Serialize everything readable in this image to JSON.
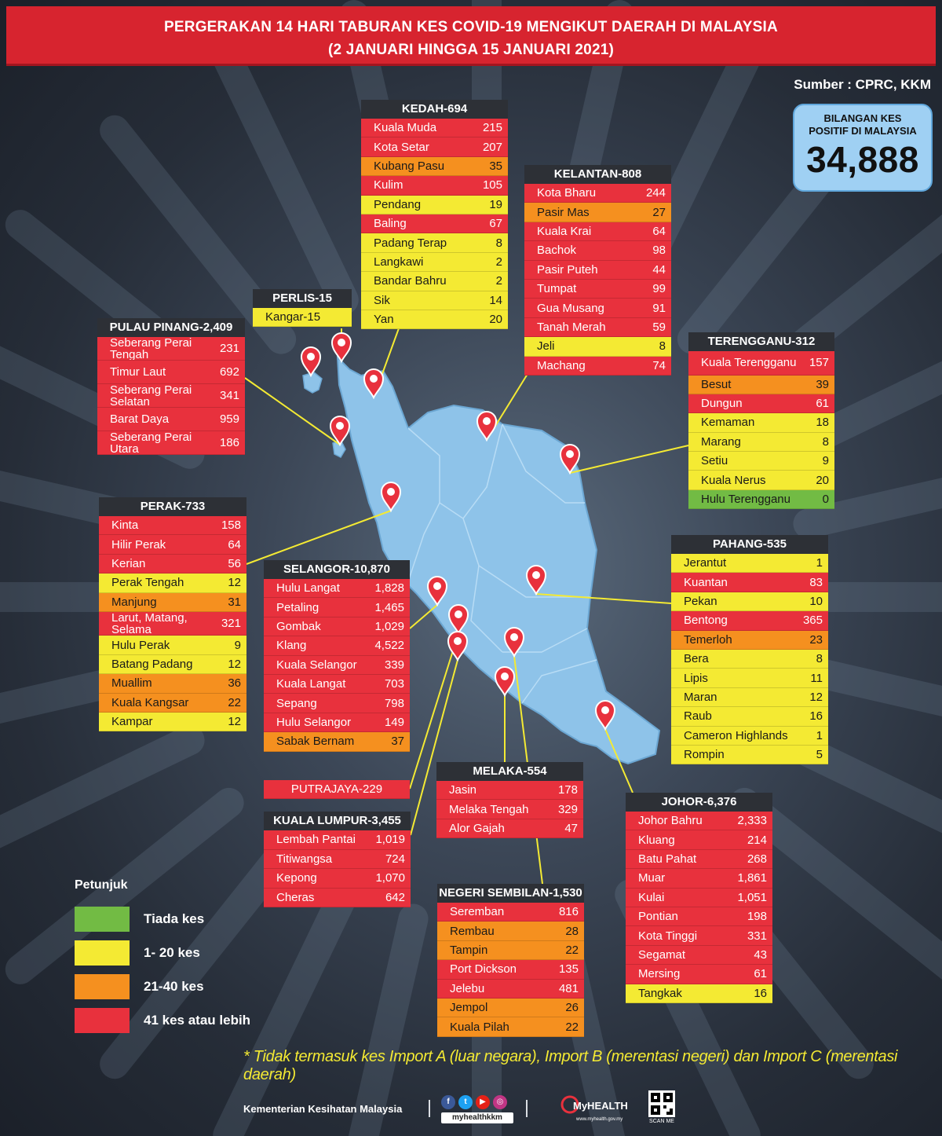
{
  "title": {
    "line1": "PERGERAKAN 14 HARI TABURAN KES COVID-19 MENGIKUT DAERAH DI MALAYSIA",
    "line2": "(2 JANUARI HINGGA 15 JANUARI 2021)"
  },
  "source": "Sumber : CPRC, KKM",
  "total": {
    "label_line1": "BILANGAN KES",
    "label_line2": "POSITIF DI MALAYSIA",
    "value": "34,888"
  },
  "colors": {
    "none": "#72bb44",
    "low": "#f4ea33",
    "mid": "#f5901f",
    "high": "#e8313d",
    "title": "#d7242f",
    "map": "#8ec3e9"
  },
  "states": [
    {
      "id": "kedah",
      "header": "KEDAH-694",
      "rows": [
        {
          "name": "Kuala Muda",
          "value": "215",
          "level": "red"
        },
        {
          "name": "Kota Setar",
          "value": "207",
          "level": "red"
        },
        {
          "name": "Kubang Pasu",
          "value": "35",
          "level": "orange"
        },
        {
          "name": "Kulim",
          "value": "105",
          "level": "red"
        },
        {
          "name": "Pendang",
          "value": "19",
          "level": "yellow"
        },
        {
          "name": "Baling",
          "value": "67",
          "level": "red"
        },
        {
          "name": "Padang Terap",
          "value": "8",
          "level": "yellow"
        },
        {
          "name": "Langkawi",
          "value": "2",
          "level": "yellow"
        },
        {
          "name": "Bandar Bahru",
          "value": "2",
          "level": "yellow"
        },
        {
          "name": "Sik",
          "value": "14",
          "level": "yellow"
        },
        {
          "name": "Yan",
          "value": "20",
          "level": "yellow"
        }
      ]
    },
    {
      "id": "kelantan",
      "header": "KELANTAN-808",
      "rows": [
        {
          "name": "Kota Bharu",
          "value": "244",
          "level": "red"
        },
        {
          "name": "Pasir Mas",
          "value": "27",
          "level": "orange"
        },
        {
          "name": "Kuala Krai",
          "value": "64",
          "level": "red"
        },
        {
          "name": "Bachok",
          "value": "98",
          "level": "red"
        },
        {
          "name": "Pasir Puteh",
          "value": "44",
          "level": "red"
        },
        {
          "name": "Tumpat",
          "value": "99",
          "level": "red"
        },
        {
          "name": "Gua Musang",
          "value": "91",
          "level": "red"
        },
        {
          "name": "Tanah Merah",
          "value": "59",
          "level": "red"
        },
        {
          "name": "Jeli",
          "value": "8",
          "level": "yellow"
        },
        {
          "name": "Machang",
          "value": "74",
          "level": "red"
        }
      ]
    },
    {
      "id": "perlis",
      "header": "PERLIS-15",
      "rows": [
        {
          "name": "Kangar-15",
          "value": "",
          "level": "yellow"
        }
      ]
    },
    {
      "id": "pulau-pinang",
      "header": "PULAU PINANG-2,409",
      "rows": [
        {
          "name": "Seberang Perai Tengah",
          "value": "231",
          "level": "red"
        },
        {
          "name": "Timur Laut",
          "value": "692",
          "level": "red"
        },
        {
          "name": "Seberang Perai Selatan",
          "value": "341",
          "level": "red"
        },
        {
          "name": "Barat Daya",
          "value": "959",
          "level": "red"
        },
        {
          "name": "Seberang Perai Utara",
          "value": "186",
          "level": "red"
        }
      ]
    },
    {
      "id": "terengganu",
      "header": "TERENGGANU-312",
      "rows": [
        {
          "name": "Kuala Terengganu",
          "value": "157",
          "level": "red"
        },
        {
          "name": "Besut",
          "value": "39",
          "level": "orange"
        },
        {
          "name": "Dungun",
          "value": "61",
          "level": "red"
        },
        {
          "name": "Kemaman",
          "value": "18",
          "level": "yellow"
        },
        {
          "name": "Marang",
          "value": "8",
          "level": "yellow"
        },
        {
          "name": "Setiu",
          "value": "9",
          "level": "yellow"
        },
        {
          "name": "Kuala Nerus",
          "value": "20",
          "level": "yellow"
        },
        {
          "name": "Hulu Terengganu",
          "value": "0",
          "level": "green"
        }
      ]
    },
    {
      "id": "perak",
      "header": "PERAK-733",
      "rows": [
        {
          "name": "Kinta",
          "value": "158",
          "level": "red"
        },
        {
          "name": "Hilir Perak",
          "value": "64",
          "level": "red"
        },
        {
          "name": "Kerian",
          "value": "56",
          "level": "red"
        },
        {
          "name": "Perak Tengah",
          "value": "12",
          "level": "yellow"
        },
        {
          "name": "Manjung",
          "value": "31",
          "level": "orange"
        },
        {
          "name": "Larut, Matang, Selama",
          "value": "321",
          "level": "red"
        },
        {
          "name": "Hulu Perak",
          "value": "9",
          "level": "yellow"
        },
        {
          "name": "Batang Padang",
          "value": "12",
          "level": "yellow"
        },
        {
          "name": "Muallim",
          "value": "36",
          "level": "orange"
        },
        {
          "name": "Kuala Kangsar",
          "value": "22",
          "level": "orange"
        },
        {
          "name": "Kampar",
          "value": "12",
          "level": "yellow"
        }
      ]
    },
    {
      "id": "selangor",
      "header": "SELANGOR-10,870",
      "rows": [
        {
          "name": "Hulu Langat",
          "value": "1,828",
          "level": "red"
        },
        {
          "name": "Petaling",
          "value": "1,465",
          "level": "red"
        },
        {
          "name": "Gombak",
          "value": "1,029",
          "level": "red"
        },
        {
          "name": "Klang",
          "value": "4,522",
          "level": "red"
        },
        {
          "name": "Kuala Selangor",
          "value": "339",
          "level": "red"
        },
        {
          "name": "Kuala Langat",
          "value": "703",
          "level": "red"
        },
        {
          "name": "Sepang",
          "value": "798",
          "level": "red"
        },
        {
          "name": "Hulu Selangor",
          "value": "149",
          "level": "red"
        },
        {
          "name": "Sabak Bernam",
          "value": "37",
          "level": "orange"
        }
      ]
    },
    {
      "id": "pahang",
      "header": "PAHANG-535",
      "rows": [
        {
          "name": "Jerantut",
          "value": "1",
          "level": "yellow"
        },
        {
          "name": "Kuantan",
          "value": "83",
          "level": "red"
        },
        {
          "name": "Pekan",
          "value": "10",
          "level": "yellow"
        },
        {
          "name": "Bentong",
          "value": "365",
          "level": "red"
        },
        {
          "name": "Temerloh",
          "value": "23",
          "level": "orange"
        },
        {
          "name": "Bera",
          "value": "8",
          "level": "yellow"
        },
        {
          "name": "Lipis",
          "value": "11",
          "level": "yellow"
        },
        {
          "name": "Maran",
          "value": "12",
          "level": "yellow"
        },
        {
          "name": "Raub",
          "value": "16",
          "level": "yellow"
        },
        {
          "name": "Cameron Highlands",
          "value": "1",
          "level": "yellow"
        },
        {
          "name": "Rompin",
          "value": "5",
          "level": "yellow"
        }
      ]
    },
    {
      "id": "putrajaya",
      "header": "",
      "rows": [
        {
          "name": "PUTRAJAYA-229",
          "value": "",
          "level": "red"
        }
      ]
    },
    {
      "id": "melaka",
      "header": "MELAKA-554",
      "rows": [
        {
          "name": "Jasin",
          "value": "178",
          "level": "red"
        },
        {
          "name": "Melaka Tengah",
          "value": "329",
          "level": "red"
        },
        {
          "name": "Alor Gajah",
          "value": "47",
          "level": "red"
        }
      ]
    },
    {
      "id": "johor",
      "header": "JOHOR-6,376",
      "rows": [
        {
          "name": "Johor Bahru",
          "value": "2,333",
          "level": "red"
        },
        {
          "name": "Kluang",
          "value": "214",
          "level": "red"
        },
        {
          "name": "Batu Pahat",
          "value": "268",
          "level": "red"
        },
        {
          "name": "Muar",
          "value": "1,861",
          "level": "red"
        },
        {
          "name": "Kulai",
          "value": "1,051",
          "level": "red"
        },
        {
          "name": "Pontian",
          "value": "198",
          "level": "red"
        },
        {
          "name": "Kota Tinggi",
          "value": "331",
          "level": "red"
        },
        {
          "name": "Segamat",
          "value": "43",
          "level": "red"
        },
        {
          "name": "Mersing",
          "value": "61",
          "level": "red"
        },
        {
          "name": "Tangkak",
          "value": "16",
          "level": "yellow"
        }
      ]
    },
    {
      "id": "kuala-lumpur",
      "header": "KUALA LUMPUR-3,455",
      "rows": [
        {
          "name": "Lembah Pantai",
          "value": "1,019",
          "level": "red"
        },
        {
          "name": "Titiwangsa",
          "value": "724",
          "level": "red"
        },
        {
          "name": "Kepong",
          "value": "1,070",
          "level": "red"
        },
        {
          "name": "Cheras",
          "value": "642",
          "level": "red"
        }
      ]
    },
    {
      "id": "negeri-sembilan",
      "header": "NEGERI SEMBILAN-1,530",
      "rows": [
        {
          "name": "Seremban",
          "value": "816",
          "level": "red"
        },
        {
          "name": "Rembau",
          "value": "28",
          "level": "orange"
        },
        {
          "name": "Tampin",
          "value": "22",
          "level": "orange"
        },
        {
          "name": "Port Dickson",
          "value": "135",
          "level": "red"
        },
        {
          "name": "Jelebu",
          "value": "481",
          "level": "red"
        },
        {
          "name": "Jempol",
          "value": "26",
          "level": "orange"
        },
        {
          "name": "Kuala Pilah",
          "value": "22",
          "level": "orange"
        }
      ]
    }
  ],
  "legend": {
    "title": "Petunjuk",
    "items": [
      {
        "label": "Tiada kes",
        "level": "green"
      },
      {
        "label": "1- 20 kes",
        "level": "yellow"
      },
      {
        "label": "21-40 kes",
        "level": "orange"
      },
      {
        "label": "41 kes atau lebih",
        "level": "red"
      }
    ]
  },
  "footnote": "* Tidak termasuk kes Import A (luar negara),  Import B (merentasi negeri) dan Import C (merentasi daerah)",
  "footer": {
    "ministry": "Kementerian Kesihatan Malaysia",
    "handle": "myhealthkkm",
    "brand": "MyHEALTH",
    "site": "www.myhealth.gov.my",
    "qr_label": "SCAN ME"
  }
}
